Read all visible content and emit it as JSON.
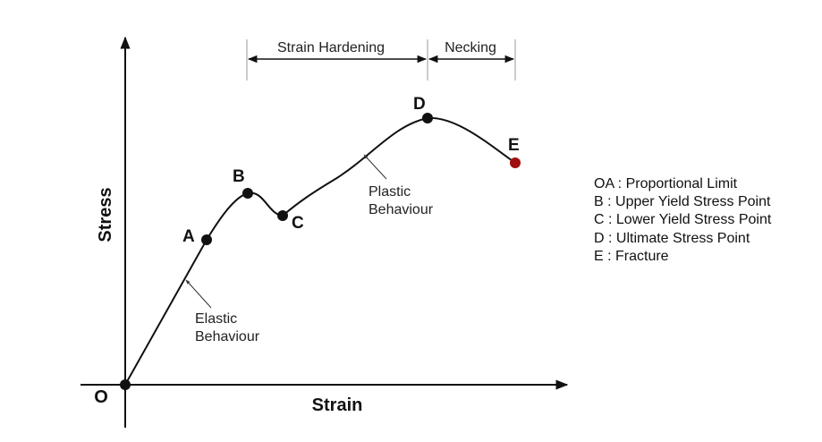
{
  "axes": {
    "x_label": "Strain",
    "y_label": "Stress",
    "origin_label": "O"
  },
  "regions": {
    "strain_hardening": "Strain Hardening",
    "necking": "Necking"
  },
  "points": {
    "A": "A",
    "B": "B",
    "C": "C",
    "D": "D",
    "E": "E"
  },
  "annotations": {
    "elastic_line1": "Elastic",
    "elastic_line2": "Behaviour",
    "plastic_line1": "Plastic",
    "plastic_line2": "Behaviour"
  },
  "legend": [
    "OA : Proportional Limit",
    "B : Upper Yield Stress Point",
    "C : Lower Yield Stress Point",
    "D : Ultimate Stress Point",
    "E : Fracture"
  ],
  "colors": {
    "curve": "#111111",
    "fracture_point": "#a01010"
  }
}
